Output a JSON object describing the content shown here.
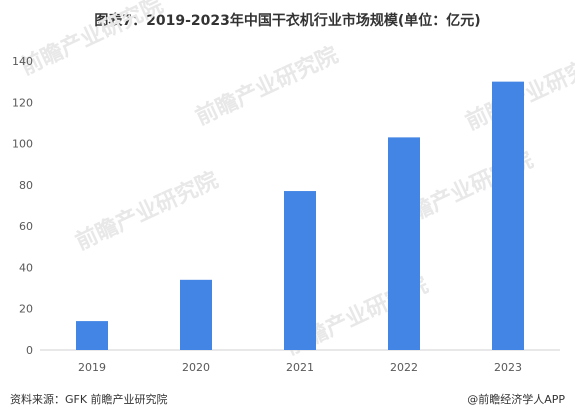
{
  "chart_data": {
    "type": "bar",
    "title": "图表7：2019-2023年中国干衣机行业市场规模(单位：亿元)",
    "categories": [
      "2019",
      "2020",
      "2021",
      "2022",
      "2023"
    ],
    "values": [
      14,
      34,
      77,
      103,
      130
    ],
    "xlabel": "",
    "ylabel": "",
    "ylim": [
      0,
      140
    ],
    "yticks": [
      0,
      20,
      40,
      60,
      80,
      100,
      120,
      140
    ],
    "grid": false,
    "legend": "none",
    "bar_color": "#4285E4"
  },
  "watermark": {
    "text": "前瞻产业研究院"
  },
  "footer": {
    "source": "资料来源：GFK 前瞻产业研究院",
    "brand_icon": "@",
    "brand": "前瞻经济学人APP"
  }
}
